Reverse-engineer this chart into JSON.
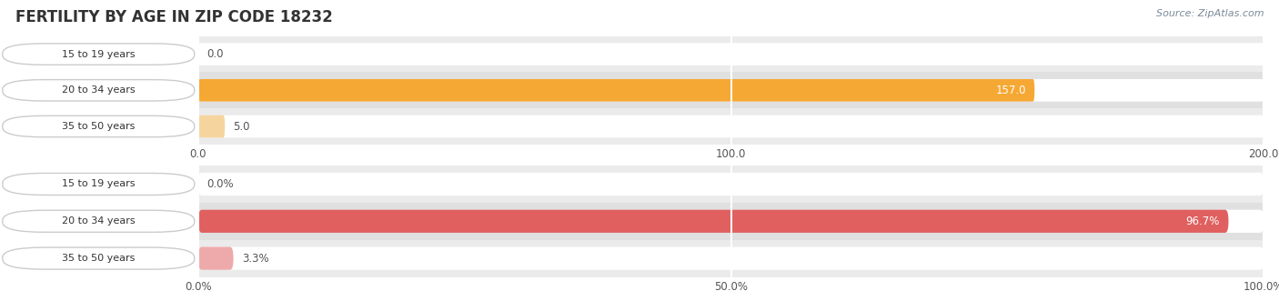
{
  "title": "FERTILITY BY AGE IN ZIP CODE 18232",
  "source": "Source: ZipAtlas.com",
  "top_chart": {
    "categories": [
      "15 to 19 years",
      "20 to 34 years",
      "35 to 50 years"
    ],
    "values": [
      0.0,
      157.0,
      5.0
    ],
    "xlim": [
      0,
      200
    ],
    "xticks": [
      0.0,
      100.0,
      200.0
    ],
    "bar_color_main": "#F5A833",
    "bar_color_light": "#F5D49E",
    "row_bg_even": "#EBEBEB",
    "row_bg_odd": "#E3E3E3"
  },
  "bottom_chart": {
    "categories": [
      "15 to 19 years",
      "20 to 34 years",
      "35 to 50 years"
    ],
    "values": [
      0.0,
      96.7,
      3.3
    ],
    "xlim": [
      0,
      100
    ],
    "xticks": [
      0.0,
      50.0,
      100.0
    ],
    "xtick_labels": [
      "0.0%",
      "50.0%",
      "100.0%"
    ],
    "bar_color_main": "#E06060",
    "bar_color_light": "#EEAAAA",
    "row_bg_even": "#EBEBEB",
    "row_bg_odd": "#E3E3E3"
  },
  "label_fontsize": 8.5,
  "tick_fontsize": 8.5,
  "title_fontsize": 12,
  "bar_height": 0.62,
  "bg_color": "#FFFFFF",
  "grid_color": "#FFFFFF",
  "row_colors": [
    "#EBEBEB",
    "#E0E0E0",
    "#EBEBEB"
  ]
}
